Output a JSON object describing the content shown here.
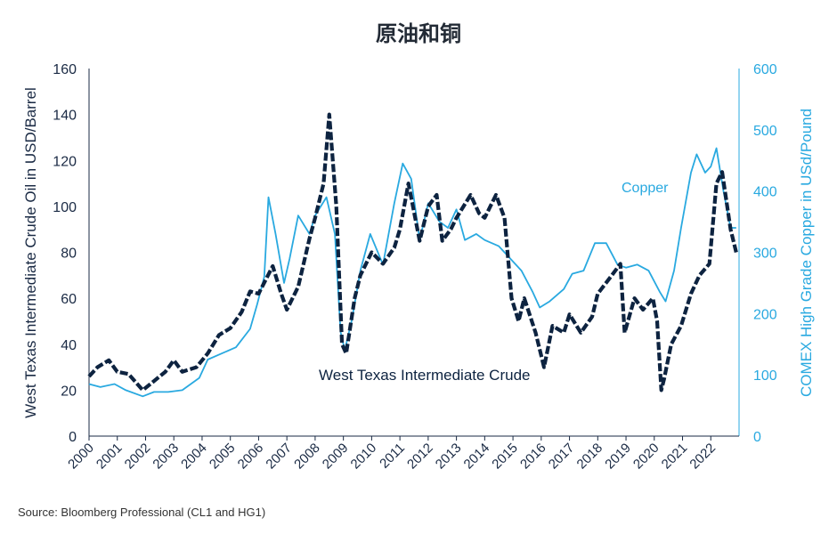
{
  "chart_data": {
    "type": "line",
    "title": "原油和铜",
    "x": [
      "2000",
      "2001",
      "2002",
      "2003",
      "2004",
      "2005",
      "2006",
      "2007",
      "2008",
      "2009",
      "2010",
      "2011",
      "2012",
      "2013",
      "2014",
      "2015",
      "2016",
      "2017",
      "2018",
      "2019",
      "2020",
      "2021",
      "2022"
    ],
    "xlim": [
      2000,
      2023
    ],
    "y_left": {
      "label": "West Texas Intermediate Crude Oil in USD/Barrel",
      "lim": [
        0,
        160
      ],
      "ticks": [
        0,
        20,
        40,
        60,
        80,
        100,
        120,
        140,
        160
      ]
    },
    "y_right": {
      "label": "COMEX High Grade Copper in USd/Pound",
      "lim": [
        0,
        600
      ],
      "ticks": [
        0,
        100,
        200,
        300,
        400,
        500,
        600
      ]
    },
    "series": [
      {
        "name": "West Texas Intermediate Crude",
        "axis": "left",
        "color": "#0d2340",
        "style": "dashed-bold",
        "points": [
          [
            2000.0,
            26
          ],
          [
            2000.3,
            30
          ],
          [
            2000.7,
            33
          ],
          [
            2001.0,
            28
          ],
          [
            2001.4,
            27
          ],
          [
            2001.9,
            20
          ],
          [
            2002.3,
            24
          ],
          [
            2002.7,
            28
          ],
          [
            2003.0,
            33
          ],
          [
            2003.3,
            28
          ],
          [
            2003.8,
            30
          ],
          [
            2004.2,
            36
          ],
          [
            2004.6,
            44
          ],
          [
            2005.0,
            47
          ],
          [
            2005.4,
            54
          ],
          [
            2005.7,
            63
          ],
          [
            2006.0,
            62
          ],
          [
            2006.5,
            74
          ],
          [
            2006.8,
            62
          ],
          [
            2007.0,
            55
          ],
          [
            2007.4,
            65
          ],
          [
            2007.8,
            86
          ],
          [
            2008.0,
            95
          ],
          [
            2008.3,
            110
          ],
          [
            2008.5,
            140
          ],
          [
            2008.75,
            100
          ],
          [
            2008.95,
            40
          ],
          [
            2009.1,
            36
          ],
          [
            2009.4,
            60
          ],
          [
            2009.6,
            70
          ],
          [
            2010.0,
            80
          ],
          [
            2010.4,
            75
          ],
          [
            2010.8,
            82
          ],
          [
            2011.0,
            90
          ],
          [
            2011.3,
            110
          ],
          [
            2011.7,
            85
          ],
          [
            2012.0,
            100
          ],
          [
            2012.3,
            105
          ],
          [
            2012.5,
            85
          ],
          [
            2012.8,
            90
          ],
          [
            2013.0,
            95
          ],
          [
            2013.5,
            105
          ],
          [
            2013.8,
            97
          ],
          [
            2014.0,
            95
          ],
          [
            2014.4,
            105
          ],
          [
            2014.7,
            95
          ],
          [
            2014.95,
            60
          ],
          [
            2015.2,
            50
          ],
          [
            2015.4,
            60
          ],
          [
            2015.8,
            45
          ],
          [
            2016.1,
            30
          ],
          [
            2016.4,
            48
          ],
          [
            2016.8,
            45
          ],
          [
            2017.0,
            53
          ],
          [
            2017.4,
            45
          ],
          [
            2017.8,
            52
          ],
          [
            2018.0,
            62
          ],
          [
            2018.5,
            70
          ],
          [
            2018.8,
            75
          ],
          [
            2018.95,
            45
          ],
          [
            2019.3,
            60
          ],
          [
            2019.6,
            55
          ],
          [
            2019.95,
            60
          ],
          [
            2020.1,
            50
          ],
          [
            2020.25,
            20
          ],
          [
            2020.35,
            25
          ],
          [
            2020.6,
            40
          ],
          [
            2020.95,
            48
          ],
          [
            2021.3,
            62
          ],
          [
            2021.6,
            70
          ],
          [
            2021.95,
            75
          ],
          [
            2022.2,
            110
          ],
          [
            2022.4,
            115
          ],
          [
            2022.7,
            90
          ],
          [
            2022.9,
            80
          ]
        ]
      },
      {
        "name": "Copper",
        "axis": "right",
        "color": "#29a9e0",
        "style": "solid",
        "points": [
          [
            2000.0,
            85
          ],
          [
            2000.4,
            80
          ],
          [
            2000.9,
            85
          ],
          [
            2001.3,
            75
          ],
          [
            2001.9,
            65
          ],
          [
            2002.3,
            72
          ],
          [
            2002.8,
            72
          ],
          [
            2003.3,
            75
          ],
          [
            2003.9,
            95
          ],
          [
            2004.2,
            125
          ],
          [
            2004.7,
            135
          ],
          [
            2005.2,
            145
          ],
          [
            2005.7,
            175
          ],
          [
            2005.95,
            215
          ],
          [
            2006.2,
            260
          ],
          [
            2006.35,
            390
          ],
          [
            2006.6,
            330
          ],
          [
            2006.9,
            250
          ],
          [
            2007.1,
            290
          ],
          [
            2007.4,
            360
          ],
          [
            2007.8,
            330
          ],
          [
            2008.0,
            360
          ],
          [
            2008.4,
            390
          ],
          [
            2008.7,
            330
          ],
          [
            2008.9,
            170
          ],
          [
            2009.05,
            140
          ],
          [
            2009.3,
            190
          ],
          [
            2009.6,
            270
          ],
          [
            2009.95,
            330
          ],
          [
            2010.4,
            280
          ],
          [
            2010.8,
            380
          ],
          [
            2011.1,
            445
          ],
          [
            2011.4,
            420
          ],
          [
            2011.7,
            320
          ],
          [
            2012.0,
            380
          ],
          [
            2012.4,
            350
          ],
          [
            2012.7,
            340
          ],
          [
            2013.0,
            370
          ],
          [
            2013.3,
            320
          ],
          [
            2013.7,
            330
          ],
          [
            2014.0,
            320
          ],
          [
            2014.5,
            310
          ],
          [
            2014.9,
            290
          ],
          [
            2015.3,
            270
          ],
          [
            2015.7,
            235
          ],
          [
            2015.95,
            210
          ],
          [
            2016.3,
            220
          ],
          [
            2016.8,
            240
          ],
          [
            2017.1,
            265
          ],
          [
            2017.5,
            270
          ],
          [
            2017.9,
            315
          ],
          [
            2018.3,
            315
          ],
          [
            2018.7,
            280
          ],
          [
            2019.0,
            275
          ],
          [
            2019.4,
            280
          ],
          [
            2019.8,
            270
          ],
          [
            2020.2,
            235
          ],
          [
            2020.4,
            220
          ],
          [
            2020.7,
            270
          ],
          [
            2020.95,
            340
          ],
          [
            2021.3,
            430
          ],
          [
            2021.5,
            460
          ],
          [
            2021.8,
            430
          ],
          [
            2022.0,
            440
          ],
          [
            2022.2,
            470
          ],
          [
            2022.45,
            400
          ],
          [
            2022.7,
            340
          ],
          [
            2022.9,
            340
          ]
        ]
      }
    ],
    "annotations": {
      "copper_label": "Copper",
      "oil_label": "West Texas Intermediate Crude"
    },
    "source": "Source: Bloomberg Professional (CL1 and HG1)",
    "grid": false,
    "legend": "inline labels"
  }
}
